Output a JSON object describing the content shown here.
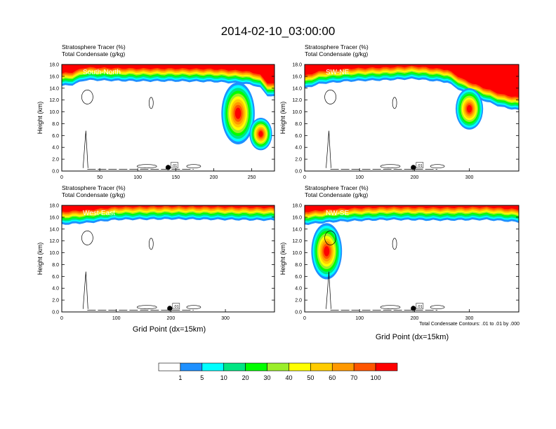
{
  "figure": {
    "title": "2014-02-10_03:00:00",
    "xlabel": "Grid Point (dx=15km)",
    "ylabel": "Height (km)",
    "panel_label_left": "Stratosphere Tracer   (%)",
    "panel_label_left2": "Total Condensate   (g/kg)",
    "panel_label_right": "(%)",
    "panel_label_right2": "(g/kg)",
    "contour_note": "Total Condensate Contours: .01 to .01 by .000",
    "contour_label": ".01"
  },
  "colorbar": {
    "colors": [
      "#ffffff",
      "#1e90ff",
      "#00ffff",
      "#00e683",
      "#00ff00",
      "#9bee2a",
      "#ffff00",
      "#ffcc00",
      "#ff9900",
      "#ff5500",
      "#ff0000"
    ],
    "labels": [
      "1",
      "5",
      "10",
      "20",
      "30",
      "40",
      "50",
      "60",
      "70",
      "100"
    ]
  },
  "chart_data": [
    {
      "type": "contour-cross-section",
      "title": "South-North",
      "xlim": [
        0,
        280
      ],
      "ylim": [
        0,
        18
      ],
      "xticks": [
        "0",
        "50",
        "100",
        "150",
        "200",
        "250"
      ],
      "yticks": [
        "0.0",
        "2.0",
        "4.0",
        "6.0",
        "8.0",
        "10.0",
        "12.0",
        "14.0",
        "16.0",
        "18.0"
      ],
      "tropopause": [
        [
          0,
          14.6
        ],
        [
          15,
          14.8
        ],
        [
          30,
          15.6
        ],
        [
          60,
          15.5
        ],
        [
          100,
          15.4
        ],
        [
          150,
          15.4
        ],
        [
          200,
          15.3
        ],
        [
          240,
          15.0
        ],
        [
          260,
          14.5
        ],
        [
          270,
          13.0
        ],
        [
          280,
          12.8
        ]
      ],
      "intrusions": [
        {
          "center_x": 232,
          "top": 15,
          "bottom": 4.5,
          "half_width": 22
        },
        {
          "center_x": 262,
          "top": 9,
          "bottom": 3.5,
          "half_width": 15
        }
      ],
      "marker_x": 140
    },
    {
      "type": "contour-cross-section",
      "title": "SW-NE",
      "xlim": [
        0,
        390
      ],
      "ylim": [
        0,
        18
      ],
      "xticks": [
        "0",
        "100",
        "200",
        "300"
      ],
      "yticks": [
        "0.0",
        "2.0",
        "4.0",
        "6.0",
        "8.0",
        "10.0",
        "12.0",
        "14.0",
        "16.0",
        "18.0"
      ],
      "tropopause": [
        [
          0,
          14.2
        ],
        [
          30,
          15.0
        ],
        [
          80,
          15.4
        ],
        [
          150,
          15.6
        ],
        [
          200,
          15.8
        ],
        [
          260,
          15.2
        ],
        [
          290,
          13.5
        ],
        [
          330,
          12.0
        ],
        [
          360,
          11.0
        ],
        [
          390,
          10.5
        ]
      ],
      "intrusions": [
        {
          "center_x": 300,
          "top": 14,
          "bottom": 7,
          "half_width": 25
        }
      ],
      "marker_x": 198
    },
    {
      "type": "contour-cross-section",
      "title": "West-East",
      "xlim": [
        0,
        390
      ],
      "ylim": [
        0,
        18
      ],
      "xticks": [
        "0",
        "100",
        "200",
        "300"
      ],
      "yticks": [
        "0.0",
        "2.0",
        "4.0",
        "6.0",
        "8.0",
        "10.0",
        "12.0",
        "14.0",
        "16.0",
        "18.0"
      ],
      "tropopause": [
        [
          0,
          15.0
        ],
        [
          50,
          15.3
        ],
        [
          100,
          15.8
        ],
        [
          200,
          15.9
        ],
        [
          300,
          15.8
        ],
        [
          390,
          15.7
        ]
      ],
      "intrusions": [],
      "marker_x": 198
    },
    {
      "type": "contour-cross-section",
      "title": "NW-SE",
      "xlim": [
        0,
        390
      ],
      "ylim": [
        0,
        18
      ],
      "xticks": [
        "0",
        "100",
        "200",
        "300"
      ],
      "yticks": [
        "0.0",
        "2.0",
        "4.0",
        "6.0",
        "8.0",
        "10.0",
        "12.0",
        "14.0",
        "16.0",
        "18.0"
      ],
      "tropopause": [
        [
          0,
          15.0
        ],
        [
          60,
          15.5
        ],
        [
          150,
          15.8
        ],
        [
          250,
          15.7
        ],
        [
          330,
          15.8
        ],
        [
          390,
          15.4
        ]
      ],
      "intrusions": [
        {
          "center_x": 40,
          "top": 15,
          "bottom": 5.5,
          "half_width": 28
        }
      ],
      "marker_x": 198
    }
  ]
}
